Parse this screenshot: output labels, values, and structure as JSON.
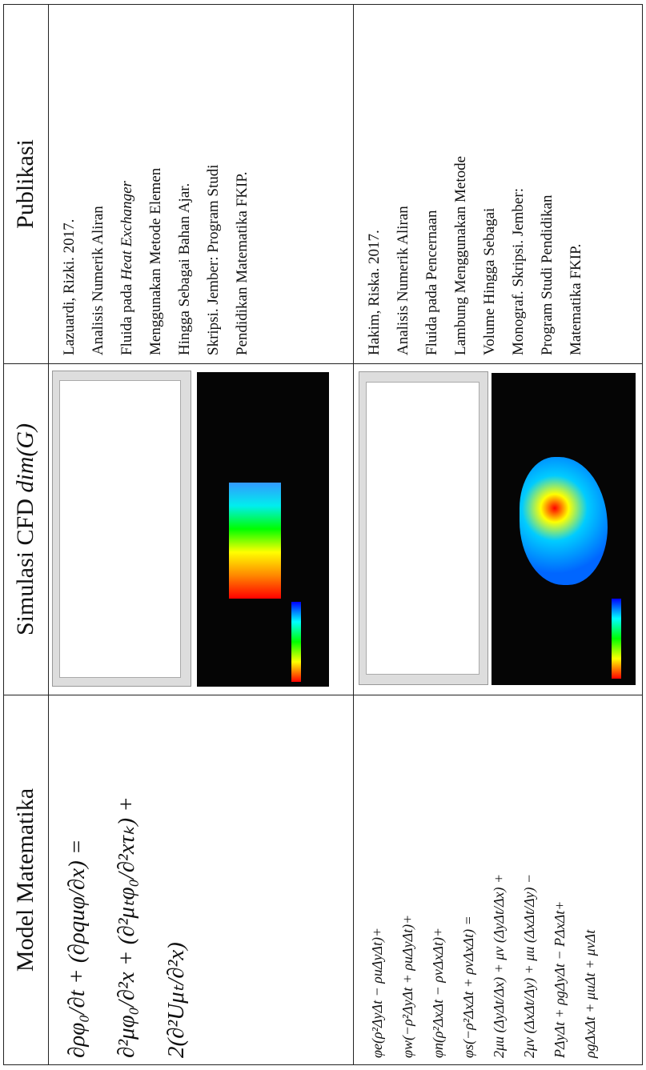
{
  "table": {
    "header": [
      [
        {
          "text": "Model Matematika"
        }
      ],
      [
        {
          "text": "Simulasi CFD "
        },
        {
          "text": "dim(G)",
          "italic": true
        }
      ],
      [
        {
          "text": "Publikasi"
        }
      ]
    ],
    "rows": [
      {
        "model": [
          "∂ρφ₀/∂t + (∂ρquφ/∂x) =",
          "∂²μφ₀/∂²x + (∂²μₜφ₀/∂²xτₖ) +",
          "2(∂²Uμₜ/∂²x)"
        ],
        "publication": [
          [
            {
              "text": "Lazuardi, Rizki. 2017."
            }
          ],
          [
            {
              "text": "Analisis Numerik Aliran"
            }
          ],
          [
            {
              "text": "Fluida pada "
            },
            {
              "text": "Heat Exchanger",
              "italic": true
            }
          ],
          [
            {
              "text": "Menggunakan Metode Elemen"
            }
          ],
          [
            {
              "text": "Hingga Sebagai Bahan Ajar."
            }
          ],
          [
            {
              "text": "Skripsi. Jember: Program Studi"
            }
          ],
          [
            {
              "text": "Pendidikan Matematika FKIP."
            }
          ]
        ]
      },
      {
        "model": [
          "φe(ρ²ΔyΔt − ρuΔyΔt)+",
          "φw(−ρ²ΔyΔt + ρuΔyΔt)+",
          "φn(ρ²ΔxΔt − ρvΔxΔt)+",
          "φs(−ρ²ΔxΔt + ρvΔxΔt) =",
          "2μu (ΔyΔt/Δx) + μv (ΔyΔt/Δx) +",
          "2μv (ΔxΔt/Δy) + μu (ΔxΔt/Δy) −",
          "PΔyΔt + ρgΔyΔt − PΔxΔt+",
          "ρgΔxΔt + μuΔt + μvΔt"
        ],
        "publication": [
          [
            {
              "text": "Hakim, Riska. 2017."
            }
          ],
          [
            {
              "text": "Analisis Numerik Aliran"
            }
          ],
          [
            {
              "text": "Fluida pada Pencernaan"
            }
          ],
          [
            {
              "text": "Lambung Menggunakan Metode"
            }
          ],
          [
            {
              "text": "Volume Hingga Sebagai"
            }
          ],
          [
            {
              "text": "Monograf. Skripsi. Jember:"
            }
          ],
          [
            {
              "text": "Program Studi Pendidikan"
            }
          ],
          [
            {
              "text": "Matematika FKIP."
            }
          ]
        ]
      }
    ]
  }
}
